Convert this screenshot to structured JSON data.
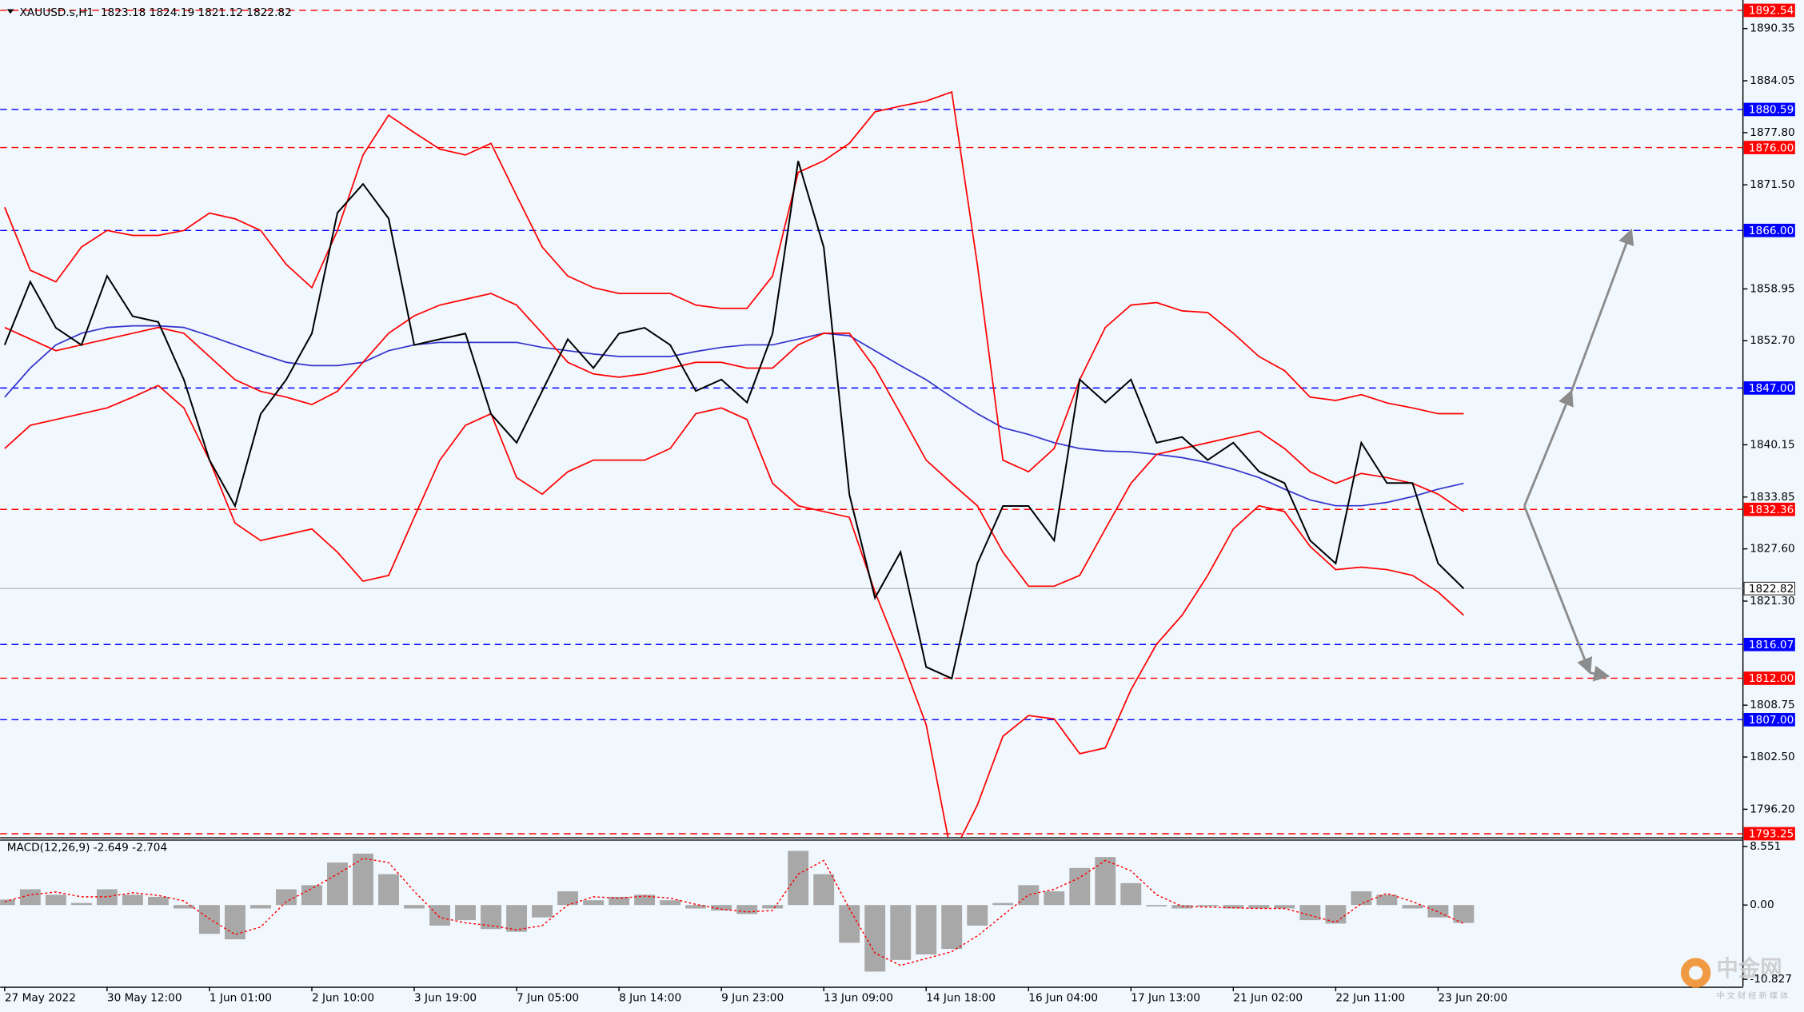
{
  "chart_data": [
    {
      "type": "line",
      "title": "XAUUSD.s,H1  1823.18 1824.19 1821.12 1822.82",
      "categories": [
        "27 May 2022",
        null,
        null,
        null,
        "30 May 12:00",
        null,
        null,
        null,
        "1 Jun 01:00",
        null,
        null,
        null,
        "2 Jun 10:00",
        null,
        null,
        null,
        "3 Jun 19:00",
        null,
        null,
        null,
        "7 Jun 05:00",
        null,
        null,
        null,
        "8 Jun 14:00",
        null,
        null,
        null,
        "9 Jun 23:00",
        null,
        null,
        null,
        "13 Jun 09:00",
        null,
        null,
        null,
        "14 Jun 18:00",
        null,
        null,
        null,
        "16 Jun 04:00",
        null,
        null,
        null,
        "17 Jun 13:00",
        null,
        null,
        null,
        "21 Jun 02:00",
        null,
        null,
        null,
        "22 Jun 11:00",
        null,
        null,
        null,
        "23 Jun 20:00",
        null
      ],
      "series": [
        {
          "color": "#3333cc",
          "values": [
            1845.9,
            1849.4,
            1852.2,
            1853.6,
            1854.3,
            1854.5,
            1854.5,
            1854.3,
            1853.3,
            1852.2,
            1851.1,
            1850.1,
            1849.7,
            1849.7,
            1850.1,
            1851.5,
            1852.2,
            1852.5,
            1852.5,
            1852.5,
            1852.5,
            1851.9,
            1851.5,
            1851.1,
            1850.8,
            1850.8,
            1850.8,
            1851.4,
            1851.9,
            1852.2,
            1852.2,
            1852.9,
            1853.6,
            1853.3,
            1851.5,
            1849.7,
            1848.0,
            1845.9,
            1843.9,
            1842.2,
            1841.4,
            1840.4,
            1839.7,
            1839.4,
            1839.3,
            1839.0,
            1838.6,
            1838.0,
            1837.2,
            1836.2,
            1834.8,
            1833.5,
            1832.8,
            1832.8,
            1833.2,
            1833.9,
            1834.8,
            1835.5
          ]
        },
        {
          "color": "#ff0000",
          "values": [
            1868.8,
            1861.2,
            1859.8,
            1864.0,
            1866.0,
            1865.4,
            1865.4,
            1866.0,
            1868.1,
            1867.4,
            1866.0,
            1861.9,
            1859.1,
            1866.0,
            1875.1,
            1879.9,
            1877.8,
            1875.8,
            1875.1,
            1876.5,
            1870.2,
            1864.0,
            1860.5,
            1859.1,
            1858.4,
            1858.4,
            1858.4,
            1857.0,
            1856.6,
            1856.6,
            1860.5,
            1873.0,
            1874.4,
            1876.5,
            1880.3,
            1881.0,
            1881.6,
            1882.7,
            1861.9,
            1838.3,
            1836.9,
            1839.7,
            1848.0,
            1854.3,
            1857.0,
            1857.3,
            1856.3,
            1856.1,
            1853.6,
            1850.8,
            1849.1,
            1845.9,
            1845.5,
            1846.2,
            1845.2,
            1844.6,
            1843.9,
            1843.9
          ]
        },
        {
          "color": "#ff0000",
          "values": [
            1854.3,
            1852.9,
            1851.5,
            1852.2,
            1852.9,
            1853.6,
            1854.3,
            1853.6,
            1850.8,
            1848.0,
            1846.6,
            1845.9,
            1845.0,
            1846.6,
            1850.1,
            1853.6,
            1855.7,
            1857.0,
            1857.7,
            1858.4,
            1857.0,
            1853.6,
            1850.1,
            1848.7,
            1848.3,
            1848.7,
            1849.4,
            1850.1,
            1850.1,
            1849.4,
            1849.4,
            1852.2,
            1853.6,
            1853.6,
            1849.4,
            1843.9,
            1838.3,
            1835.5,
            1832.8,
            1827.2,
            1823.1,
            1823.1,
            1824.4,
            1830.0,
            1835.5,
            1839.0,
            1839.7,
            1840.4,
            1841.1,
            1841.8,
            1839.7,
            1836.9,
            1835.5,
            1836.7,
            1836.2,
            1835.5,
            1834.2,
            1832.1
          ]
        },
        {
          "color": "#ff0000",
          "values": [
            1839.7,
            1842.5,
            1843.2,
            1843.9,
            1844.6,
            1845.9,
            1847.3,
            1844.6,
            1838.3,
            1830.7,
            1828.6,
            1829.3,
            1830.0,
            1827.2,
            1823.7,
            1824.4,
            1831.4,
            1838.3,
            1842.5,
            1843.9,
            1836.2,
            1834.2,
            1836.9,
            1838.3,
            1838.3,
            1838.3,
            1839.7,
            1843.9,
            1844.6,
            1843.2,
            1835.5,
            1832.8,
            1832.1,
            1831.4,
            1822.4,
            1814.7,
            1806.4,
            1790.5,
            1796.7,
            1805.0,
            1807.5,
            1807.1,
            1802.9,
            1803.6,
            1810.6,
            1816.1,
            1819.6,
            1824.4,
            1830.0,
            1832.8,
            1832.1,
            1827.9,
            1825.1,
            1825.4,
            1825.1,
            1824.4,
            1822.4,
            1819.6
          ]
        },
        {
          "color": "#000000",
          "values": [
            1852.19,
            1859.81,
            1854.26,
            1852.19,
            1860.51,
            1855.65,
            1854.96,
            1848.02,
            1838.32,
            1832.77,
            1843.86,
            1848.02,
            1853.57,
            1868.13,
            1871.6,
            1867.44,
            1852.19,
            1852.88,
            1853.57,
            1843.86,
            1840.4,
            1846.64,
            1852.88,
            1849.41,
            1853.57,
            1854.26,
            1852.19,
            1846.64,
            1848.02,
            1845.25,
            1853.57,
            1874.37,
            1863.97,
            1834.16,
            1821.68,
            1827.22,
            1813.36,
            1811.97,
            1825.84,
            1832.77,
            1832.77,
            1828.61,
            1848.02,
            1845.25,
            1848.02,
            1840.4,
            1841.09,
            1838.32,
            1840.4,
            1836.93,
            1835.54,
            1828.61,
            1825.84,
            1840.4,
            1835.54,
            1835.54,
            1825.84,
            1822.82
          ]
        }
      ],
      "ylim": [
        1792.83,
        1893.79
      ],
      "yticks": [
        {
          "value": 1890.35,
          "label": "1890.35"
        },
        {
          "value": 1884.05,
          "label": "1884.05"
        },
        {
          "value": 1877.8,
          "label": "1877.80"
        },
        {
          "value": 1871.5,
          "label": "1871.50"
        },
        {
          "value": 1858.95,
          "label": "1858.95"
        },
        {
          "value": 1852.7,
          "label": "1852.70"
        },
        {
          "value": 1840.15,
          "label": "1840.15"
        },
        {
          "value": 1833.85,
          "label": "1833.85"
        },
        {
          "value": 1827.6,
          "label": "1827.60"
        },
        {
          "value": 1821.3,
          "label": "1821.30"
        },
        {
          "value": 1808.75,
          "label": "1808.75"
        },
        {
          "value": 1802.5,
          "label": "1802.50"
        },
        {
          "value": 1796.2,
          "label": "1796.20"
        }
      ],
      "levels": [
        {
          "value": 1892.54,
          "label": "1892.54",
          "color": "#ff0000"
        },
        {
          "value": 1880.59,
          "label": "1880.59",
          "color": "#0000ff"
        },
        {
          "value": 1876,
          "label": "1876.00",
          "color": "#ff0000"
        },
        {
          "value": 1866,
          "label": "1866.00",
          "color": "#0000ff"
        },
        {
          "value": 1847,
          "label": "1847.00",
          "color": "#0000ff"
        },
        {
          "value": 1832.36,
          "label": "1832.36",
          "color": "#ff0000"
        },
        {
          "value": 1822.82,
          "label": "1822.82",
          "color": "#c0c0c0"
        },
        {
          "value": 1816.07,
          "label": "1816.07",
          "color": "#0000ff"
        },
        {
          "value": 1812,
          "label": "1812.00",
          "color": "#ff0000"
        },
        {
          "value": 1807,
          "label": "1807.00",
          "color": "#0000ff"
        },
        {
          "value": 1793.25,
          "label": "1793.25",
          "color": "#ff0000"
        }
      ]
    },
    {
      "type": "bar",
      "title": "MACD(12,26,9) -2.649 -2.704",
      "color": "#a8a8a8",
      "values": [
        0.8,
        2.3,
        1.5,
        0.3,
        2.3,
        1.5,
        1.2,
        -0.5,
        -4.2,
        -5.0,
        -0.5,
        2.3,
        2.9,
        6.2,
        7.5,
        4.5,
        -0.5,
        -3.0,
        -2.2,
        -3.5,
        -3.9,
        -1.8,
        2.0,
        0.7,
        1.2,
        1.5,
        0.7,
        -0.5,
        -0.8,
        -1.3,
        -0.5,
        7.9,
        4.5,
        -5.5,
        -9.7,
        -8.0,
        -7.2,
        -6.4,
        -3.0,
        0.3,
        2.9,
        2.0,
        5.4,
        7.0,
        3.2,
        -0.2,
        -0.5,
        -0.2,
        -0.5,
        -0.5,
        -0.5,
        -2.2,
        -2.7,
        2.0,
        1.5,
        -0.5,
        -1.8,
        -2.6
      ],
      "signal": {
        "color": "#ff0000",
        "values": [
          0.5,
          1.5,
          1.9,
          1.2,
          1.2,
          1.8,
          1.4,
          0.6,
          -2.0,
          -4.3,
          -3.2,
          0.5,
          2.4,
          4.5,
          6.8,
          6.2,
          2.0,
          -1.8,
          -2.6,
          -3.0,
          -3.6,
          -3.0,
          0.0,
          1.2,
          1.0,
          1.3,
          1.0,
          0.1,
          -0.6,
          -1.0,
          -0.8,
          4.5,
          6.5,
          -0.5,
          -7.0,
          -8.8,
          -7.8,
          -6.8,
          -4.5,
          -1.5,
          1.5,
          2.3,
          4.0,
          6.5,
          5.0,
          1.5,
          -0.2,
          -0.3,
          -0.4,
          -0.5,
          -0.5,
          -1.5,
          -2.5,
          0.2,
          1.7,
          0.5,
          -1.0,
          -2.7
        ]
      },
      "ylim": [
        -11.905,
        9.557
      ],
      "yticks": [
        8.551,
        {
          "value": 0,
          "label": "0.00"
        },
        -10.827
      ]
    }
  ],
  "watermark": {
    "title": "中金网",
    "subtitle": "中 文 财 经 新 媒 体"
  }
}
